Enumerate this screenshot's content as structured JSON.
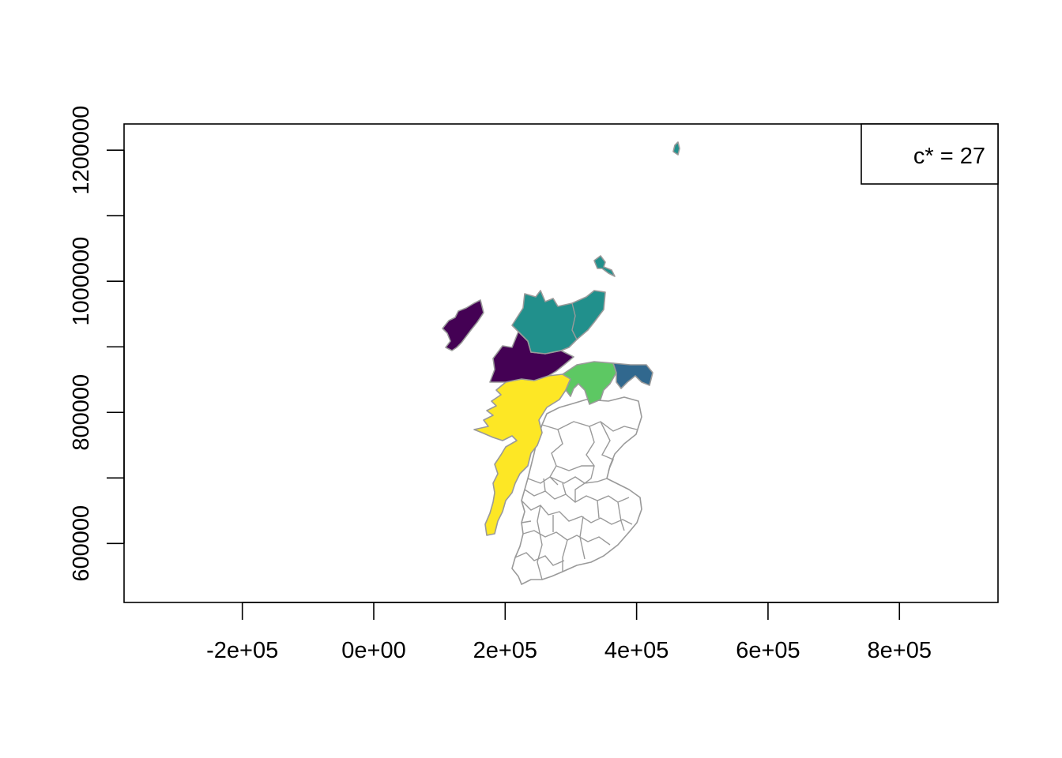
{
  "map": {
    "legend_text": "c* = 27",
    "x_ticks": [
      {
        "value": -200000,
        "label": "-2e+05"
      },
      {
        "value": 0,
        "label": "0e+00"
      },
      {
        "value": 200000,
        "label": "2e+05"
      },
      {
        "value": 400000,
        "label": "4e+05"
      },
      {
        "value": 600000,
        "label": "6e+05"
      },
      {
        "value": 800000,
        "label": "8e+05"
      }
    ],
    "y_ticks": [
      {
        "value": 600000,
        "label": "600000",
        "labeled": true
      },
      {
        "value": 700000,
        "label": "",
        "labeled": false
      },
      {
        "value": 800000,
        "label": "800000",
        "labeled": true
      },
      {
        "value": 900000,
        "label": "",
        "labeled": false
      },
      {
        "value": 1000000,
        "label": "1000000",
        "labeled": true
      },
      {
        "value": 1100000,
        "label": "",
        "labeled": false
      },
      {
        "value": 1200000,
        "label": "1200000",
        "labeled": true
      }
    ],
    "x_range": [
      -380000,
      950000
    ],
    "y_range": [
      510000,
      1240000
    ],
    "colors": {
      "purple": "#440154",
      "teal": "#21908C",
      "blue": "#31688E",
      "green": "#5DC863",
      "yellow": "#FDE725",
      "border": "#9a9a9a",
      "blank": "#ffffff"
    },
    "clusters": [
      {
        "id": "purple",
        "color": "#440154"
      },
      {
        "id": "teal",
        "color": "#21908C"
      },
      {
        "id": "blue",
        "color": "#31688E"
      },
      {
        "id": "green",
        "color": "#5DC863"
      },
      {
        "id": "yellow",
        "color": "#FDE725"
      }
    ]
  }
}
